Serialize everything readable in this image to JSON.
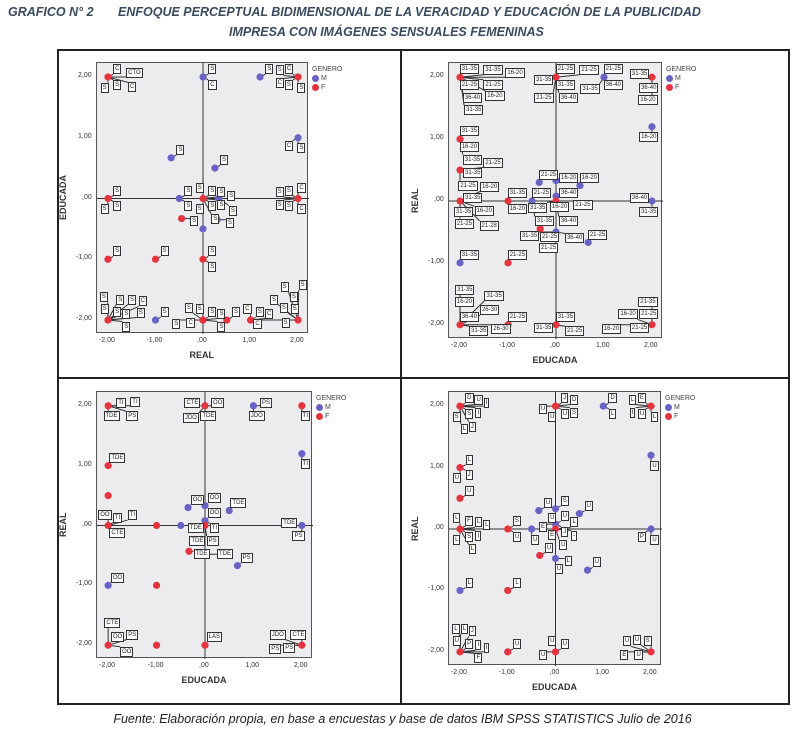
{
  "header": {
    "graph_no": "GRAFICO N° 2",
    "title_line1": "ENFOQUE PERCEPTUAL BIDIMENSIONAL DE LA VERACIDAD Y EDUCACIÓN DE LA PUBLICIDAD",
    "title_line2": "IMPRESA CON IMÁGENES SENSUALES FEMENINAS"
  },
  "source": "Fuente: Elaboración propia, en base a encuestas y base de datos IBM SPSS STATISTICS Julio de 2016",
  "colors": {
    "M": "#6b62c6",
    "F": "#e6343f"
  },
  "chart_data": [
    {
      "type": "scatter",
      "xlabel": "REAL",
      "ylabel": "EDUCADA",
      "xlim": [
        -2,
        2
      ],
      "ylim": [
        -2,
        2
      ],
      "ticks": [
        "-2,00",
        "-1,00",
        ",00",
        "1,00",
        "2,00"
      ],
      "legend": {
        "title": "GENERO",
        "items": [
          "M",
          "F"
        ],
        "placement": "right"
      },
      "points": [
        {
          "x": -2,
          "y": 2,
          "g": "F",
          "labels": [
            "C",
            "S",
            "CTO",
            "S",
            "C"
          ]
        },
        {
          "x": 0,
          "y": 2,
          "g": "M",
          "labels": [
            "S",
            "C"
          ]
        },
        {
          "x": 1.2,
          "y": 2,
          "g": "M",
          "labels": [
            "S"
          ]
        },
        {
          "x": 2,
          "y": 2,
          "g": "F",
          "labels": [
            "S",
            "S",
            "C",
            "C",
            "S"
          ]
        },
        {
          "x": 2,
          "y": 1,
          "g": "M",
          "labels": [
            "S",
            "C"
          ]
        },
        {
          "x": -0.67,
          "y": 0.67,
          "g": "M",
          "labels": [
            "S"
          ]
        },
        {
          "x": 0.25,
          "y": 0.5,
          "g": "M",
          "labels": [
            "S"
          ]
        },
        {
          "x": -2,
          "y": 0,
          "g": "F",
          "labels": [
            "S",
            "S",
            "S"
          ]
        },
        {
          "x": -0.5,
          "y": 0,
          "g": "M",
          "labels": [
            "S",
            "S"
          ]
        },
        {
          "x": 0,
          "y": 0,
          "g": "F",
          "labels": [
            "S",
            "S",
            "S",
            "S",
            "S",
            "S",
            "S"
          ]
        },
        {
          "x": 0.33,
          "y": 0,
          "g": "M",
          "labels": [
            "S",
            "S"
          ]
        },
        {
          "x": 2,
          "y": 0,
          "g": "F",
          "labels": [
            "C",
            "S",
            "S",
            "C",
            "S",
            "S"
          ]
        },
        {
          "x": -0.45,
          "y": -0.33,
          "g": "F",
          "labels": [
            "S"
          ]
        },
        {
          "x": 0.3,
          "y": -0.35,
          "g": "M",
          "labels": [
            "S"
          ]
        },
        {
          "x": 0,
          "y": -0.5,
          "g": "M",
          "labels": []
        },
        {
          "x": -2,
          "y": -1,
          "g": "F",
          "labels": [
            "S"
          ]
        },
        {
          "x": -1,
          "y": -1,
          "g": "F",
          "labels": [
            "S"
          ]
        },
        {
          "x": 0,
          "y": -1,
          "g": "F",
          "labels": [
            "S",
            "S"
          ]
        },
        {
          "x": -2,
          "y": -2,
          "g": "F",
          "labels": [
            "S",
            "S",
            "S",
            "S",
            "S",
            "S",
            "S",
            "S",
            "C"
          ]
        },
        {
          "x": -1,
          "y": -2,
          "g": "M",
          "labels": [
            "S"
          ]
        },
        {
          "x": 0,
          "y": -2,
          "g": "F",
          "labels": [
            "S",
            "C",
            "S",
            "S",
            "S",
            "S",
            "S"
          ]
        },
        {
          "x": 0.5,
          "y": -2,
          "g": "F",
          "labels": [
            "S"
          ]
        },
        {
          "x": 1,
          "y": -2,
          "g": "F",
          "labels": [
            "S",
            "C",
            "C"
          ]
        },
        {
          "x": 2,
          "y": -2,
          "g": "F",
          "labels": [
            "S",
            "S",
            "S",
            "S",
            "S",
            "C",
            "S",
            "S"
          ]
        }
      ]
    },
    {
      "type": "scatter",
      "xlabel": "EDUCADA",
      "ylabel": "REAL",
      "xlim": [
        -2,
        2
      ],
      "ylim": [
        -2,
        2
      ],
      "ticks": [
        "-2,00",
        "-1,00",
        ",00",
        "1,00",
        "2,00"
      ],
      "legend": {
        "title": "GENERO",
        "items": [
          "M",
          "F"
        ],
        "placement": "right"
      },
      "points": [
        {
          "x": -2,
          "y": 2,
          "g": "F",
          "labels": [
            "31-35",
            "21-25",
            "36-40",
            "31-35",
            "21-25",
            "16-20",
            "31-35",
            "16-20"
          ]
        },
        {
          "x": 0,
          "y": 2,
          "g": "F",
          "labels": [
            "21-25",
            "31-35",
            "31-35",
            "36-40",
            "21-25",
            "21-25"
          ]
        },
        {
          "x": 1,
          "y": 2,
          "g": "M",
          "labels": [
            "21-25",
            "36-40",
            "31-35"
          ]
        },
        {
          "x": 2,
          "y": 2,
          "g": "F",
          "labels": [
            "36-40",
            "31-35",
            "16-20"
          ]
        },
        {
          "x": 2,
          "y": 1.2,
          "g": "M",
          "labels": [
            "16-20"
          ]
        },
        {
          "x": -2,
          "y": 1,
          "g": "F",
          "labels": [
            "31-35",
            "16-20",
            "31-35"
          ]
        },
        {
          "x": -2,
          "y": 0.5,
          "g": "F",
          "labels": [
            "31-35",
            "21-25",
            "21-25"
          ]
        },
        {
          "x": -0.35,
          "y": 0.3,
          "g": "M",
          "labels": [
            "21-25"
          ]
        },
        {
          "x": 0,
          "y": 0.33,
          "g": "M",
          "labels": [
            "16-20"
          ]
        },
        {
          "x": 0.5,
          "y": 0.25,
          "g": "M",
          "labels": [
            "16-20"
          ]
        },
        {
          "x": 0,
          "y": 0.08,
          "g": "M",
          "labels": [
            "36-40",
            "16-20"
          ]
        },
        {
          "x": -2,
          "y": 0,
          "g": "F",
          "labels": [
            "31-35",
            "31-35",
            "16-20",
            "21-25",
            "16-20",
            "21-28"
          ]
        },
        {
          "x": -1,
          "y": 0,
          "g": "F",
          "labels": [
            "31-35",
            "16-20"
          ]
        },
        {
          "x": -0.5,
          "y": 0,
          "g": "M",
          "labels": [
            "21-25",
            "31-35"
          ]
        },
        {
          "x": 0,
          "y": 0,
          "g": "F",
          "labels": [
            "31-35",
            "21-25",
            "36-40"
          ]
        },
        {
          "x": 2,
          "y": 0,
          "g": "M",
          "labels": [
            "31-35",
            "36-40"
          ]
        },
        {
          "x": -0.33,
          "y": -0.45,
          "g": "F",
          "labels": [
            "21-25"
          ]
        },
        {
          "x": 0,
          "y": -0.5,
          "g": "M",
          "labels": [
            "36-40",
            "21-25",
            "31-35"
          ]
        },
        {
          "x": 0.67,
          "y": -0.67,
          "g": "M",
          "labels": [
            "21-25"
          ]
        },
        {
          "x": -2,
          "y": -1,
          "g": "M",
          "labels": [
            "31-35"
          ]
        },
        {
          "x": -1,
          "y": -1,
          "g": "F",
          "labels": [
            "21-25"
          ]
        },
        {
          "x": -2,
          "y": -2,
          "g": "F",
          "labels": [
            "36-40",
            "31-35",
            "16-20",
            "26-30",
            "26-30",
            "31-35",
            "31-35"
          ]
        },
        {
          "x": -1,
          "y": -2,
          "g": "F",
          "labels": [
            "21-25"
          ]
        },
        {
          "x": 0,
          "y": -2,
          "g": "F",
          "labels": [
            "31-35",
            "31-35",
            "21-25"
          ]
        },
        {
          "x": 2,
          "y": -2,
          "g": "F",
          "labels": [
            "21-25",
            "21-25",
            "16-20",
            "21-35",
            "16-20"
          ]
        }
      ]
    },
    {
      "type": "scatter",
      "xlabel": "EDUCADA",
      "ylabel": "REAL",
      "xlim": [
        -2,
        2
      ],
      "ylim": [
        -2,
        2
      ],
      "ticks": [
        "-2,00",
        "-1,00",
        ",00",
        "1,00",
        "2,00"
      ],
      "legend": {
        "title": "GENERO",
        "items": [
          "M",
          "F"
        ],
        "placement": "right"
      },
      "points": [
        {
          "x": -2,
          "y": 2,
          "g": "F",
          "labels": [
            "TI",
            "TDE",
            "TI",
            "PS"
          ]
        },
        {
          "x": 0,
          "y": 2,
          "g": "F",
          "labels": [
            "OO",
            "TDE",
            "CTE",
            "JDO"
          ]
        },
        {
          "x": 1,
          "y": 2,
          "g": "M",
          "labels": [
            "PS",
            "JDO"
          ]
        },
        {
          "x": 2,
          "y": 2,
          "g": "F",
          "labels": [
            "TI"
          ]
        },
        {
          "x": 2,
          "y": 1.2,
          "g": "M",
          "labels": [
            "TI"
          ]
        },
        {
          "x": -2,
          "y": 1,
          "g": "F",
          "labels": [
            "TDE"
          ]
        },
        {
          "x": -2,
          "y": 0.5,
          "g": "F",
          "labels": []
        },
        {
          "x": -0.35,
          "y": 0.3,
          "g": "M",
          "labels": [
            "OO"
          ]
        },
        {
          "x": 0,
          "y": 0.33,
          "g": "M",
          "labels": [
            "OO"
          ]
        },
        {
          "x": 0.5,
          "y": 0.25,
          "g": "M",
          "labels": [
            "TDE"
          ]
        },
        {
          "x": 0,
          "y": 0.08,
          "g": "M",
          "labels": [
            "OO",
            "TI",
            "TDE"
          ]
        },
        {
          "x": -2,
          "y": 0,
          "g": "F",
          "labels": [
            "TI",
            "CTE",
            "OO",
            "TI"
          ]
        },
        {
          "x": -1,
          "y": 0,
          "g": "F",
          "labels": []
        },
        {
          "x": -0.5,
          "y": 0,
          "g": "M",
          "labels": []
        },
        {
          "x": 0,
          "y": 0,
          "g": "F",
          "labels": [
            "PS",
            "TDE"
          ]
        },
        {
          "x": 2,
          "y": 0,
          "g": "M",
          "labels": [
            "PS",
            "TDE"
          ]
        },
        {
          "x": -0.33,
          "y": -0.43,
          "g": "F",
          "labels": [
            "TDE"
          ]
        },
        {
          "x": 0,
          "y": -0.48,
          "g": "M",
          "labels": [
            "TDE"
          ]
        },
        {
          "x": 0.67,
          "y": -0.67,
          "g": "M",
          "labels": [
            "PS"
          ]
        },
        {
          "x": -2,
          "y": -1,
          "g": "M",
          "labels": [
            "OO"
          ]
        },
        {
          "x": -1,
          "y": -1,
          "g": "F",
          "labels": []
        },
        {
          "x": -2,
          "y": -2,
          "g": "F",
          "labels": [
            "OO",
            "OO",
            "CTE",
            "PS"
          ]
        },
        {
          "x": -1,
          "y": -2,
          "g": "F",
          "labels": []
        },
        {
          "x": 0,
          "y": -2,
          "g": "F",
          "labels": [
            "LAS"
          ]
        },
        {
          "x": 2,
          "y": -2,
          "g": "F",
          "labels": [
            "PS",
            "CTE",
            "PS",
            "JDO"
          ]
        }
      ]
    },
    {
      "type": "scatter",
      "xlabel": "EDUCADA",
      "ylabel": "REAL",
      "xlim": [
        -2,
        2
      ],
      "ylim": [
        -2,
        2
      ],
      "ticks": [
        "-2,00",
        "-1,00",
        ",00",
        "1,00",
        "2,00"
      ],
      "legend": {
        "title": "GENERO",
        "items": [
          "M",
          "F"
        ],
        "placement": "right"
      },
      "points": [
        {
          "x": -2,
          "y": 2,
          "g": "F",
          "labels": [
            "D",
            "S",
            "S",
            "U",
            "I",
            "I",
            "J",
            "L"
          ]
        },
        {
          "x": 0,
          "y": 2,
          "g": "F",
          "labels": [
            "J",
            "U",
            "U",
            "U",
            "D",
            "S"
          ]
        },
        {
          "x": 1,
          "y": 2,
          "g": "M",
          "labels": [
            "D",
            "L"
          ]
        },
        {
          "x": 2,
          "y": 2,
          "g": "F",
          "labels": [
            "L",
            "U",
            "E",
            "I",
            "L"
          ]
        },
        {
          "x": 2,
          "y": 1.2,
          "g": "M",
          "labels": [
            "U"
          ]
        },
        {
          "x": -2,
          "y": 1,
          "g": "F",
          "labels": [
            "L",
            "J",
            "U"
          ]
        },
        {
          "x": -2,
          "y": 0.5,
          "g": "F",
          "labels": [
            "U"
          ]
        },
        {
          "x": -0.35,
          "y": 0.3,
          "g": "M",
          "labels": [
            "U"
          ]
        },
        {
          "x": 0,
          "y": 0.33,
          "g": "M",
          "labels": [
            "S"
          ]
        },
        {
          "x": 0.5,
          "y": 0.25,
          "g": "M",
          "labels": [
            "U"
          ]
        },
        {
          "x": 0,
          "y": 0.08,
          "g": "M",
          "labels": [
            "U",
            "J",
            "E",
            "E"
          ]
        },
        {
          "x": -2,
          "y": 0,
          "g": "F",
          "labels": [
            "F",
            "S",
            "L",
            "L",
            "L",
            "I",
            "L",
            "L"
          ]
        },
        {
          "x": -1,
          "y": 0,
          "g": "F",
          "labels": [
            "S",
            "U"
          ]
        },
        {
          "x": -0.5,
          "y": 0,
          "g": "M",
          "labels": [
            "U"
          ]
        },
        {
          "x": 0,
          "y": 0,
          "g": "F",
          "labels": [
            "U",
            "L",
            "-",
            "U"
          ]
        },
        {
          "x": 2,
          "y": 0,
          "g": "M",
          "labels": [
            "U",
            "P"
          ]
        },
        {
          "x": -0.33,
          "y": -0.43,
          "g": "F",
          "labels": [
            "U"
          ]
        },
        {
          "x": 0,
          "y": -0.48,
          "g": "M",
          "labels": [
            "L",
            "U"
          ]
        },
        {
          "x": 0.67,
          "y": -0.67,
          "g": "M",
          "labels": [
            "U"
          ]
        },
        {
          "x": -2,
          "y": -1,
          "g": "M",
          "labels": [
            "L"
          ]
        },
        {
          "x": -1,
          "y": -1,
          "g": "F",
          "labels": [
            "L"
          ]
        },
        {
          "x": -2,
          "y": -2,
          "g": "F",
          "labels": [
            "P",
            "U",
            "I",
            "F",
            "L",
            "L",
            "J",
            "I"
          ]
        },
        {
          "x": -1,
          "y": -2,
          "g": "F",
          "labels": [
            "U"
          ]
        },
        {
          "x": 0,
          "y": -2,
          "g": "F",
          "labels": [
            "U",
            "U",
            "U"
          ]
        },
        {
          "x": 2,
          "y": -2,
          "g": "F",
          "labels": [
            "U",
            "S",
            "U",
            "E",
            "U"
          ]
        }
      ]
    }
  ]
}
